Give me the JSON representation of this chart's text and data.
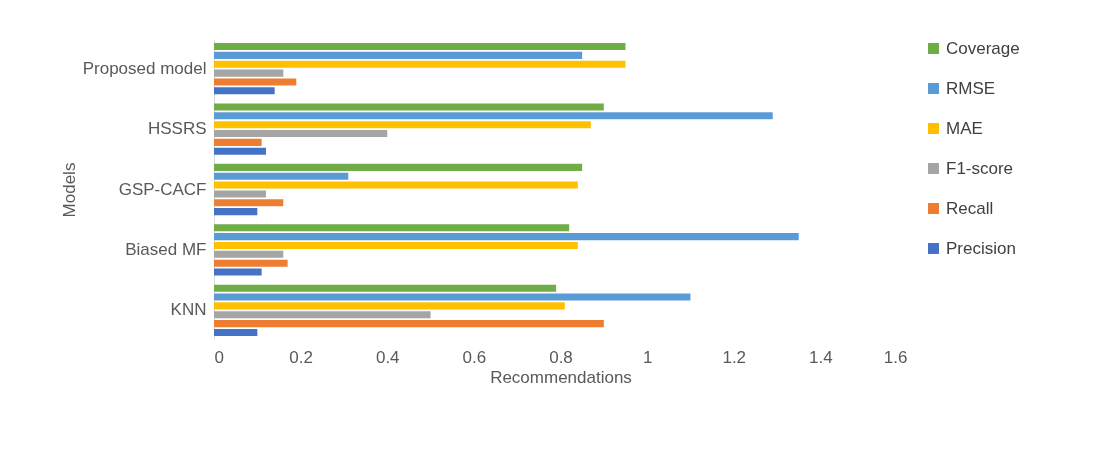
{
  "chart_data": {
    "type": "bar",
    "orientation": "horizontal",
    "xlabel": "Recommendations",
    "ylabel": "Models",
    "categories": [
      "Proposed model",
      "HSSRS",
      "GSP-CACF",
      "Biased MF",
      "KNN"
    ],
    "series": [
      {
        "name": "Precision",
        "color": "#4472c4",
        "values": [
          0.14,
          0.12,
          0.1,
          0.11,
          0.1
        ]
      },
      {
        "name": "Recall",
        "color": "#ed7d31",
        "values": [
          0.19,
          0.11,
          0.16,
          0.17,
          0.9
        ]
      },
      {
        "name": "F1-score",
        "color": "#a5a5a5",
        "values": [
          0.16,
          0.4,
          0.12,
          0.16,
          0.5
        ]
      },
      {
        "name": "MAE",
        "color": "#ffc000",
        "values": [
          0.95,
          0.87,
          0.84,
          0.84,
          0.81
        ]
      },
      {
        "name": "RMSE",
        "color": "#5b9bd5",
        "values": [
          0.85,
          1.29,
          0.31,
          1.35,
          1.1
        ]
      },
      {
        "name": "Coverage",
        "color": "#70ad47",
        "values": [
          0.95,
          0.9,
          0.85,
          0.82,
          0.79
        ]
      }
    ],
    "xlim": [
      0,
      1.6
    ],
    "xticks": [
      0,
      0.2,
      0.4,
      0.6,
      0.8,
      1,
      1.2,
      1.4,
      1.6
    ],
    "legend": "right",
    "grid": false
  }
}
